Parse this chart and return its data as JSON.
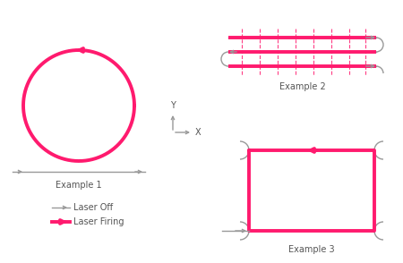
{
  "bg_color": "#ffffff",
  "laser_off_color": "#999999",
  "laser_on_color": "#ff1a6e",
  "text_color": "#555555",
  "example1_label": "Example 1",
  "example2_label": "Example 2",
  "example3_label": "Example 3",
  "legend_off": "Laser Off",
  "legend_on": "Laser Firing",
  "lw_off": 1.0,
  "lw_on": 2.8
}
